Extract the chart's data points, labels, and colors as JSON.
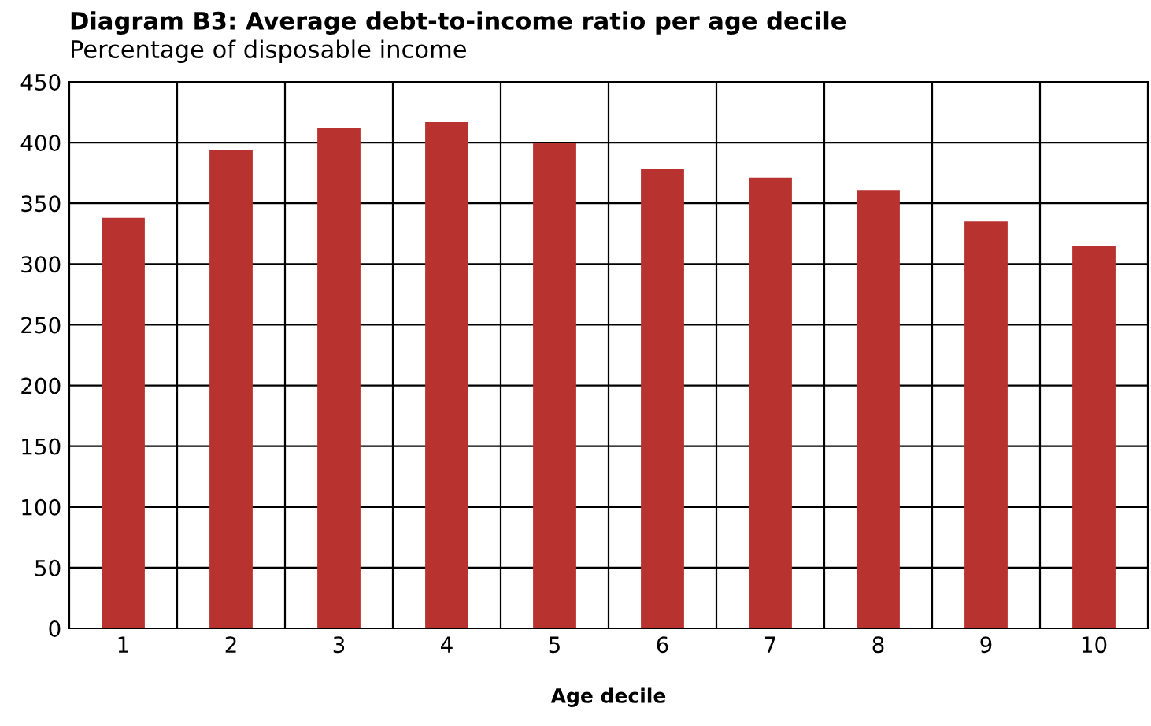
{
  "chart_data": {
    "type": "bar",
    "title": "Diagram B3: Average debt-to-income ratio per age decile",
    "subtitle": "Percentage of disposable income",
    "xlabel": "Age decile",
    "categories": [
      "1",
      "2",
      "3",
      "4",
      "5",
      "6",
      "7",
      "8",
      "9",
      "10"
    ],
    "values": [
      338,
      394,
      412,
      417,
      400,
      378,
      371,
      361,
      335,
      315
    ],
    "color": "#b83230",
    "ylim": [
      0,
      450
    ],
    "yticks": [
      0,
      50,
      100,
      150,
      200,
      250,
      300,
      350,
      400,
      450
    ],
    "grid": true
  }
}
